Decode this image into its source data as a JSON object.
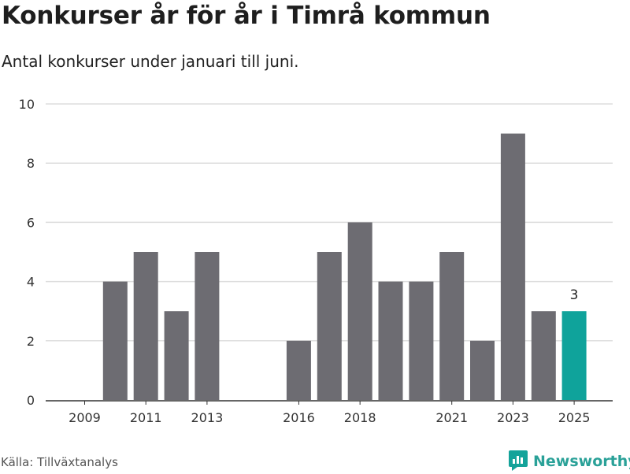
{
  "title": "Konkurser år för år i Timrå kommun",
  "subtitle": "Antal konkurser under januari till juni.",
  "source": "Källa: Tillväxtanalys",
  "brand": {
    "name": "Newsworthy",
    "icon": "newsworthy-logo-icon",
    "color": "#14a39a"
  },
  "colors": {
    "bar": "#6d6c72",
    "highlight": "#0fa39b",
    "grid": "#dedede",
    "axis": "#333333"
  },
  "chart_data": {
    "type": "bar",
    "categories": [
      "2009",
      "2010",
      "2011",
      "2012",
      "2013",
      "2014",
      "2015",
      "2016",
      "2017",
      "2018",
      "2019",
      "2020",
      "2021",
      "2022",
      "2023",
      "2024",
      "2025"
    ],
    "values": [
      0,
      4,
      5,
      3,
      5,
      0,
      0,
      2,
      5,
      6,
      4,
      4,
      5,
      2,
      9,
      3,
      3
    ],
    "highlight_category": "2025",
    "x_tick_labels": [
      "2009",
      "2011",
      "2013",
      "2016",
      "2018",
      "2021",
      "2023",
      "2025"
    ],
    "y_ticks": [
      0,
      2,
      4,
      6,
      8,
      10
    ],
    "ylim": [
      0,
      10
    ],
    "data_labels": [
      {
        "category": "2025",
        "text": "3"
      }
    ],
    "grid": true,
    "legend": "none",
    "xlabel": "",
    "ylabel": ""
  }
}
